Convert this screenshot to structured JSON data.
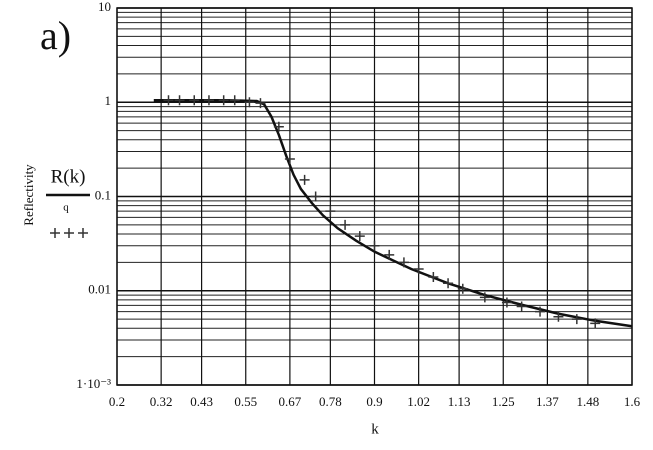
{
  "chart_data": {
    "type": "line_scatter",
    "panel_label": "a)",
    "ylabel": "Reflectivity",
    "xlabel": "k",
    "log_y": true,
    "grid": true,
    "xlim": [
      0.2,
      1.6
    ],
    "xticks": [
      0.2,
      0.32,
      0.43,
      0.55,
      0.67,
      0.78,
      0.9,
      1.02,
      1.13,
      1.25,
      1.37,
      1.48,
      1.6
    ],
    "ylim": [
      0.001,
      10
    ],
    "yticks": [
      {
        "value": 0.001,
        "label": "1·10⁻³"
      },
      0.01,
      0.1,
      1,
      10
    ],
    "y_minor_ticks": [
      0.002,
      0.003,
      0.004,
      0.005,
      0.006,
      0.007,
      0.008,
      0.009,
      0.02,
      0.03,
      0.04,
      0.05,
      0.06,
      0.07,
      0.08,
      0.09,
      0.2,
      0.3,
      0.4,
      0.5,
      0.6,
      0.7,
      0.8,
      0.9,
      2,
      3,
      4,
      5,
      6,
      7,
      8,
      9
    ],
    "series": [
      {
        "name": "R(k)",
        "kind": "line",
        "color": "#111111",
        "x": [
          0.3,
          0.4,
          0.5,
          0.58,
          0.6,
          0.62,
          0.64,
          0.66,
          0.68,
          0.7,
          0.73,
          0.76,
          0.8,
          0.85,
          0.9,
          0.95,
          1.0,
          1.1,
          1.2,
          1.3,
          1.4,
          1.5,
          1.6
        ],
        "values": [
          1.05,
          1.05,
          1.05,
          1.03,
          0.95,
          0.7,
          0.45,
          0.27,
          0.17,
          0.12,
          0.085,
          0.063,
          0.046,
          0.034,
          0.026,
          0.021,
          0.017,
          0.012,
          0.009,
          0.0071,
          0.0057,
          0.0048,
          0.0042
        ]
      },
      {
        "name": "q",
        "kind": "scatter",
        "color": "#333333",
        "x": [
          0.34,
          0.37,
          0.41,
          0.45,
          0.49,
          0.52,
          0.56,
          0.59,
          0.64,
          0.67,
          0.71,
          0.74,
          0.78,
          0.82,
          0.86,
          0.9,
          0.94,
          0.98,
          1.02,
          1.06,
          1.1,
          1.14,
          1.2,
          1.26,
          1.3,
          1.35,
          1.4,
          1.45,
          1.5
        ],
        "values": [
          1.05,
          1.05,
          1.05,
          1.05,
          1.05,
          1.05,
          1.0,
          0.98,
          0.55,
          0.25,
          0.15,
          0.1,
          0.07,
          0.05,
          0.038,
          0.03,
          0.024,
          0.02,
          0.017,
          0.014,
          0.012,
          0.0105,
          0.0085,
          0.0075,
          0.0068,
          0.006,
          0.0053,
          0.005,
          0.0045
        ]
      }
    ]
  }
}
